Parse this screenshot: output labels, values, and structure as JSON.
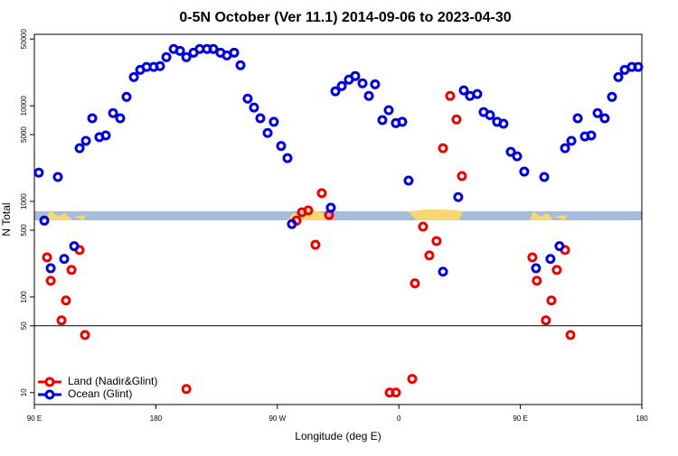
{
  "chart_data": {
    "type": "scatter",
    "title": "0-5N October (Ver 11.1)   2014-09-06 to 2023-04-30",
    "xlabel": "Longitude (deg E)",
    "ylabel": "N Total",
    "xlim": [
      90,
      540
    ],
    "ylim": [
      7.5,
      56000
    ],
    "ylog": true,
    "xticks": [
      {
        "value": 90,
        "label": "90 E"
      },
      180,
      {
        "value": 270,
        "label": "90 W"
      },
      {
        "value": 360,
        "label": "0"
      },
      {
        "value": 450,
        "label": "90 E"
      },
      {
        "value": 540,
        "label": "180"
      }
    ],
    "yticks": [
      10,
      50,
      100,
      500,
      1000,
      5000,
      10000,
      50000
    ],
    "hline": 50,
    "legend": "lower left",
    "series": [
      {
        "name": "Land (Nadir&Glint)",
        "color": "#ee0000",
        "x": [
          99.4,
          102.1,
          110.1,
          113.4,
          117.5,
          123.5,
          127.5,
          202.6,
          284.2,
          288.2,
          292.9,
          298.2,
          302.9,
          308.3,
          353.2,
          357.8,
          369.9,
          371.9,
          377.9,
          382.6,
          387.9,
          392.7,
          398,
          402.7,
          406.7,
          458.9,
          462.2,
          468.9,
          473,
          477,
          483.1,
          487.1
        ],
        "values": [
          260,
          148,
          57,
          92,
          192,
          310,
          40,
          10.9,
          630,
          770,
          805,
          352,
          1220,
          720,
          10,
          10,
          13.9,
          139,
          545,
          272,
          385,
          3600,
          12700,
          7200,
          1840,
          260,
          148,
          57,
          92,
          192,
          310,
          40
        ]
      },
      {
        "name": "Ocean (Glint)",
        "color": "#0000dd",
        "x": [
          93.3,
          97.4,
          102.1,
          107.4,
          112.1,
          119.5,
          123.5,
          128.2,
          132.9,
          138.2,
          142.9,
          148.3,
          153.6,
          158.3,
          163.7,
          168.4,
          173.1,
          178.4,
          183.1,
          187.8,
          193.2,
          197.9,
          202.6,
          207.9,
          212.5,
          217.9,
          222.6,
          227.9,
          232.6,
          238,
          242.7,
          248,
          252.7,
          257.4,
          262.8,
          267.4,
          272.8,
          277.5,
          280.8,
          309.6,
          313,
          317.7,
          323,
          327.7,
          333.1,
          337.8,
          342.4,
          347.8,
          352.5,
          357.8,
          362.5,
          367.2,
          392.7,
          404,
          408.1,
          412.7,
          418.1,
          422.8,
          427.5,
          432.8,
          437.5,
          442.9,
          447.6,
          452.9,
          461.6,
          467.7,
          472.3,
          479,
          483.1,
          487.8,
          492.5,
          497.8,
          502.5,
          507.2,
          512.5,
          517.9,
          522.6,
          527.3,
          532.6,
          537.3
        ],
        "values": [
          2000,
          630,
          200,
          1800,
          250,
          340,
          3600,
          4300,
          7400,
          4700,
          4900,
          8400,
          7400,
          12400,
          20000,
          23800,
          25500,
          25500,
          26000,
          32300,
          39300,
          37600,
          32300,
          36000,
          39300,
          39300,
          39300,
          36000,
          33700,
          36000,
          26600,
          11900,
          9600,
          7400,
          5200,
          6800,
          3800,
          2840,
          580,
          860,
          14200,
          16100,
          18800,
          20500,
          17200,
          12700,
          16800,
          7100,
          9000,
          6600,
          6800,
          1650,
          184,
          1110,
          14500,
          12700,
          13300,
          8600,
          8000,
          6800,
          6500,
          3300,
          2960,
          2050,
          200,
          1800,
          250,
          340,
          3600,
          4300,
          7400,
          4780,
          4900,
          8400,
          7400,
          12400,
          20000,
          23800,
          25500,
          25500
        ]
      }
    ]
  }
}
